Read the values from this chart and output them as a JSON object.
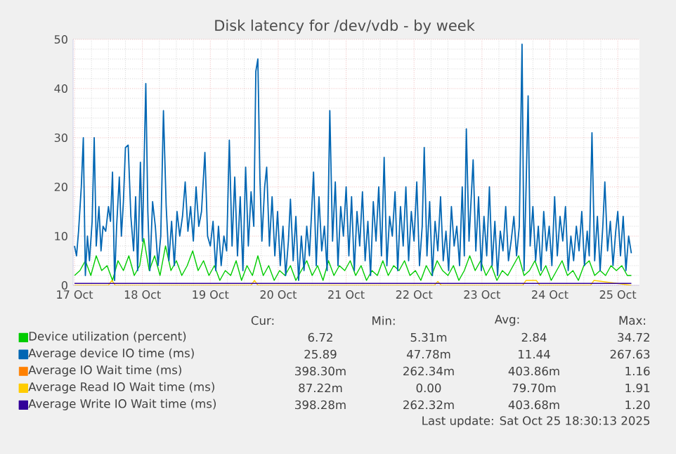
{
  "chart_data": {
    "type": "line",
    "title": "Disk latency for /dev/vdb - by week",
    "xlim": [
      "2025-10-17T11:30",
      "2025-10-25T19:40"
    ],
    "xticks": [
      {
        "value": "2025-10-17T12:00",
        "label": "17 Oct"
      },
      {
        "value": "2025-10-18T12:00",
        "label": "18 Oct"
      },
      {
        "value": "2025-10-19T12:00",
        "label": "19 Oct"
      },
      {
        "value": "2025-10-20T12:00",
        "label": "20 Oct"
      },
      {
        "value": "2025-10-21T12:00",
        "label": "21 Oct"
      },
      {
        "value": "2025-10-22T12:00",
        "label": "22 Oct"
      },
      {
        "value": "2025-10-23T12:00",
        "label": "23 Oct"
      },
      {
        "value": "2025-10-24T12:00",
        "label": "24 Oct"
      },
      {
        "value": "2025-10-25T12:00",
        "label": "25 Oct"
      }
    ],
    "ylim": [
      0,
      50
    ],
    "yticks": [
      0,
      10,
      20,
      30,
      40,
      50
    ],
    "grid": true,
    "legend": "bottom",
    "series": [
      {
        "name": "Device utilization (percent)",
        "color": "#00cc00",
        "x": [
          "2025-10-17T12:00",
          "2025-10-17T13:55",
          "2025-10-17T15:50",
          "2025-10-17T17:46",
          "2025-10-17T19:41",
          "2025-10-17T21:36",
          "2025-10-17T23:31",
          "2025-10-18T01:26",
          "2025-10-18T03:22",
          "2025-10-18T05:17",
          "2025-10-18T07:12",
          "2025-10-18T09:07",
          "2025-10-18T11:02",
          "2025-10-18T12:29",
          "2025-10-18T14:24",
          "2025-10-18T16:19",
          "2025-10-18T18:14",
          "2025-10-18T20:10",
          "2025-10-18T22:05",
          "2025-10-19T00:00",
          "2025-10-19T01:55",
          "2025-10-19T03:50",
          "2025-10-19T05:46",
          "2025-10-19T07:41",
          "2025-10-19T09:36",
          "2025-10-19T11:31",
          "2025-10-19T13:26",
          "2025-10-19T15:22",
          "2025-10-19T17:17",
          "2025-10-19T19:12",
          "2025-10-19T21:07",
          "2025-10-19T23:02",
          "2025-10-20T00:58",
          "2025-10-20T02:53",
          "2025-10-20T04:48",
          "2025-10-20T06:43",
          "2025-10-20T08:38",
          "2025-10-20T10:34",
          "2025-10-20T12:29",
          "2025-10-20T14:24",
          "2025-10-20T16:19",
          "2025-10-20T18:14",
          "2025-10-20T20:10",
          "2025-10-20T22:05",
          "2025-10-21T00:00",
          "2025-10-21T01:55",
          "2025-10-21T03:50",
          "2025-10-21T05:46",
          "2025-10-21T07:41",
          "2025-10-21T09:36",
          "2025-10-21T11:31",
          "2025-10-21T13:26",
          "2025-10-21T15:22",
          "2025-10-21T17:17",
          "2025-10-21T19:12",
          "2025-10-21T21:07",
          "2025-10-21T23:02",
          "2025-10-22T00:58",
          "2025-10-22T02:53",
          "2025-10-22T04:48",
          "2025-10-22T06:43",
          "2025-10-22T08:38",
          "2025-10-22T10:34",
          "2025-10-22T12:29",
          "2025-10-22T14:24",
          "2025-10-22T16:19",
          "2025-10-22T18:14",
          "2025-10-22T20:10",
          "2025-10-22T22:05",
          "2025-10-23T00:00",
          "2025-10-23T01:55",
          "2025-10-23T03:50",
          "2025-10-23T05:46",
          "2025-10-23T07:41",
          "2025-10-23T09:36",
          "2025-10-23T11:31",
          "2025-10-23T13:26",
          "2025-10-23T15:22",
          "2025-10-23T17:17",
          "2025-10-23T19:12",
          "2025-10-23T21:07",
          "2025-10-23T23:02",
          "2025-10-24T00:58",
          "2025-10-24T02:53",
          "2025-10-24T04:48",
          "2025-10-24T06:43",
          "2025-10-24T08:38",
          "2025-10-24T10:34",
          "2025-10-24T12:29",
          "2025-10-24T14:24",
          "2025-10-24T16:19",
          "2025-10-24T18:14",
          "2025-10-24T20:10",
          "2025-10-24T22:05",
          "2025-10-25T00:00",
          "2025-10-25T01:55",
          "2025-10-25T03:50",
          "2025-10-25T05:46",
          "2025-10-25T07:41",
          "2025-10-25T09:36",
          "2025-10-25T11:31",
          "2025-10-25T13:26",
          "2025-10-25T15:22",
          "2025-10-25T16:48"
        ],
        "values": [
          2,
          3,
          5,
          2,
          6,
          3,
          4,
          1,
          5,
          3,
          6,
          2,
          4,
          9.5,
          3,
          6,
          2,
          8,
          3,
          5,
          2,
          4,
          7,
          3,
          5,
          2,
          4,
          1,
          3,
          2,
          5,
          1,
          4,
          2,
          6,
          2,
          4,
          1,
          3,
          2,
          4,
          1,
          3,
          5,
          2,
          4,
          1,
          5,
          2,
          4,
          3,
          5,
          2,
          4,
          1,
          3,
          2,
          5,
          2,
          4,
          3,
          5,
          2,
          3,
          1,
          4,
          2,
          5,
          3,
          2,
          4,
          1,
          3,
          6,
          3,
          5,
          2,
          4,
          1,
          3,
          2,
          4,
          6,
          2,
          3,
          5,
          2,
          4,
          1,
          3,
          5,
          2,
          3,
          1,
          4,
          5,
          2,
          3,
          2,
          4,
          3,
          4,
          2,
          2
        ]
      },
      {
        "name": "Average device IO time (ms)",
        "color": "#0066b3",
        "x": [
          "2025-10-17T12:00",
          "2025-10-17T12:43",
          "2025-10-17T13:26",
          "2025-10-17T14:24",
          "2025-10-17T15:07",
          "2025-10-17T15:50",
          "2025-10-17T16:34",
          "2025-10-17T17:17",
          "2025-10-17T18:14",
          "2025-10-17T18:58",
          "2025-10-17T19:41",
          "2025-10-17T20:38",
          "2025-10-17T21:22",
          "2025-10-17T22:05",
          "2025-10-17T23:02",
          "2025-10-18T00:00",
          "2025-10-18T00:43",
          "2025-10-18T01:26",
          "2025-10-18T02:10",
          "2025-10-18T02:53",
          "2025-10-18T03:50",
          "2025-10-18T04:34",
          "2025-10-18T05:17",
          "2025-10-18T06:00",
          "2025-10-18T06:58",
          "2025-10-18T07:55",
          "2025-10-18T08:53",
          "2025-10-18T09:36",
          "2025-10-18T10:19",
          "2025-10-18T11:17",
          "2025-10-18T12:00",
          "2025-10-18T13:12",
          "2025-10-18T13:55",
          "2025-10-18T14:38",
          "2025-10-18T15:36",
          "2025-10-18T16:34",
          "2025-10-18T17:31",
          "2025-10-18T18:29",
          "2025-10-18T19:26",
          "2025-10-18T20:24",
          "2025-10-18T21:22",
          "2025-10-18T22:19",
          "2025-10-18T23:17",
          "2025-10-19T00:14",
          "2025-10-19T01:12",
          "2025-10-19T02:10",
          "2025-10-19T03:07",
          "2025-10-19T04:05",
          "2025-10-19T05:02",
          "2025-10-19T06:00",
          "2025-10-19T06:58",
          "2025-10-19T07:55",
          "2025-10-19T08:53",
          "2025-10-19T10:05",
          "2025-10-19T11:02",
          "2025-10-19T12:00",
          "2025-10-19T12:58",
          "2025-10-19T13:55",
          "2025-10-19T14:53",
          "2025-10-19T15:50",
          "2025-10-19T16:48",
          "2025-10-19T17:46",
          "2025-10-19T18:43",
          "2025-10-19T19:41",
          "2025-10-19T20:38",
          "2025-10-19T21:36",
          "2025-10-19T22:34",
          "2025-10-19T23:31",
          "2025-10-20T00:29",
          "2025-10-20T01:26",
          "2025-10-20T02:24",
          "2025-10-20T03:22",
          "2025-10-20T04:05",
          "2025-10-20T04:48",
          "2025-10-20T05:31",
          "2025-10-20T06:14",
          "2025-10-20T07:12",
          "2025-10-20T07:55",
          "2025-10-20T08:53",
          "2025-10-20T09:50",
          "2025-10-20T10:48",
          "2025-10-20T11:46",
          "2025-10-20T12:43",
          "2025-10-20T13:41",
          "2025-10-20T14:38",
          "2025-10-20T15:36",
          "2025-10-20T16:19",
          "2025-10-20T17:17",
          "2025-10-20T18:14",
          "2025-10-20T19:12",
          "2025-10-20T20:10",
          "2025-10-20T21:07",
          "2025-10-20T22:05",
          "2025-10-20T23:02",
          "2025-10-21T00:29",
          "2025-10-21T01:26",
          "2025-10-21T02:24",
          "2025-10-21T03:22",
          "2025-10-21T04:19",
          "2025-10-21T05:17",
          "2025-10-21T06:14",
          "2025-10-21T07:12",
          "2025-10-21T08:10",
          "2025-10-21T09:07",
          "2025-10-21T10:05",
          "2025-10-21T11:02",
          "2025-10-21T12:00",
          "2025-10-21T12:58",
          "2025-10-21T13:55",
          "2025-10-21T14:53",
          "2025-10-21T15:50",
          "2025-10-21T16:48",
          "2025-10-21T17:46",
          "2025-10-21T18:43",
          "2025-10-21T19:41",
          "2025-10-21T20:38",
          "2025-10-21T21:36",
          "2025-10-21T22:34",
          "2025-10-21T23:31",
          "2025-10-22T00:29",
          "2025-10-22T01:26",
          "2025-10-22T02:24",
          "2025-10-22T03:22",
          "2025-10-22T04:19",
          "2025-10-22T05:17",
          "2025-10-22T06:14",
          "2025-10-22T07:12",
          "2025-10-22T08:10",
          "2025-10-22T09:07",
          "2025-10-22T10:05",
          "2025-10-22T11:02",
          "2025-10-22T12:00",
          "2025-10-22T12:58",
          "2025-10-22T13:55",
          "2025-10-22T14:53",
          "2025-10-22T15:36",
          "2025-10-22T16:34",
          "2025-10-22T17:31",
          "2025-10-22T18:29",
          "2025-10-22T19:26",
          "2025-10-22T20:24",
          "2025-10-22T21:22",
          "2025-10-22T22:19",
          "2025-10-22T23:17",
          "2025-10-23T00:14",
          "2025-10-23T01:12",
          "2025-10-23T02:10",
          "2025-10-23T03:07",
          "2025-10-23T04:05",
          "2025-10-23T05:02",
          "2025-10-23T05:46",
          "2025-10-23T06:29",
          "2025-10-23T07:26",
          "2025-10-23T08:53",
          "2025-10-23T09:50",
          "2025-10-23T10:48",
          "2025-10-23T11:46",
          "2025-10-23T12:43",
          "2025-10-23T13:41",
          "2025-10-23T14:38",
          "2025-10-23T15:36",
          "2025-10-23T16:34",
          "2025-10-23T17:31",
          "2025-10-23T18:29",
          "2025-10-23T19:26",
          "2025-10-23T20:24",
          "2025-10-23T21:22",
          "2025-10-23T22:19",
          "2025-10-23T23:17",
          "2025-10-24T00:14",
          "2025-10-24T01:12",
          "2025-10-24T02:10",
          "2025-10-24T02:53",
          "2025-10-24T03:36",
          "2025-10-24T04:19",
          "2025-10-24T05:02",
          "2025-10-24T06:00",
          "2025-10-24T06:58",
          "2025-10-24T07:55",
          "2025-10-24T08:53",
          "2025-10-24T09:50",
          "2025-10-24T10:48",
          "2025-10-24T11:46",
          "2025-10-24T12:43",
          "2025-10-24T13:41",
          "2025-10-24T14:38",
          "2025-10-24T15:36",
          "2025-10-24T16:34",
          "2025-10-24T17:31",
          "2025-10-24T18:29",
          "2025-10-24T19:26",
          "2025-10-24T20:24",
          "2025-10-24T21:22",
          "2025-10-24T22:19",
          "2025-10-24T23:17",
          "2025-10-25T00:14",
          "2025-10-25T01:12",
          "2025-10-25T01:55",
          "2025-10-25T02:53",
          "2025-10-25T03:50",
          "2025-10-25T04:48",
          "2025-10-25T05:46",
          "2025-10-25T06:43",
          "2025-10-25T07:26",
          "2025-10-25T08:24",
          "2025-10-25T09:22",
          "2025-10-25T10:19",
          "2025-10-25T11:17",
          "2025-10-25T12:00",
          "2025-10-25T12:58",
          "2025-10-25T13:55",
          "2025-10-25T14:53",
          "2025-10-25T15:50",
          "2025-10-25T16:48"
        ],
        "values": [
          8,
          6,
          11,
          20,
          30,
          2,
          10,
          5,
          13,
          30,
          8,
          16,
          7,
          12,
          11,
          16,
          13,
          23,
          1,
          12,
          22,
          10,
          17,
          28,
          28.5,
          14,
          7,
          18,
          3,
          25,
          9,
          41,
          15,
          3,
          17,
          12,
          4,
          10,
          35.5,
          16,
          5,
          13,
          4,
          15,
          10,
          14,
          21,
          11,
          16,
          9,
          20,
          12,
          15,
          27,
          10,
          8,
          13,
          3,
          12,
          4,
          10,
          7,
          29.5,
          8,
          22,
          6,
          18,
          3,
          24,
          8,
          19,
          12,
          43.5,
          46,
          22,
          9,
          20,
          24,
          8,
          18,
          6,
          15,
          4,
          12,
          2,
          9,
          17.5,
          5,
          14,
          1,
          10,
          3,
          12,
          6,
          23,
          4,
          18,
          7,
          12,
          3,
          35.5,
          9,
          21,
          4,
          16,
          10,
          20,
          6,
          18,
          3,
          15,
          8,
          19,
          5,
          13,
          2,
          17,
          9,
          20,
          6,
          26,
          4,
          14,
          10,
          19,
          3,
          16,
          8,
          20,
          5,
          15,
          9,
          21,
          4,
          12,
          28,
          6,
          17,
          2,
          13,
          7,
          18,
          5,
          11,
          3,
          16,
          8,
          12,
          4,
          20,
          6,
          31.8,
          9,
          25.5,
          7,
          18,
          3,
          14,
          6,
          20,
          4,
          13,
          2,
          11,
          7,
          16,
          5,
          9,
          14,
          6,
          12,
          49,
          3,
          20,
          38.5,
          8,
          16,
          5,
          12,
          3,
          15,
          7,
          12,
          4,
          18,
          6,
          14,
          9,
          16,
          3,
          10,
          5,
          12,
          7,
          15,
          4,
          11,
          6,
          31,
          5,
          14,
          3,
          12,
          21,
          7,
          13,
          4,
          11,
          15,
          6,
          14,
          3,
          10,
          6.5
        ]
      },
      {
        "name": "Average IO Wait time (ms)",
        "color": "#ff8000",
        "values": [
          null,
          null,
          null,
          null,
          null,
          null,
          null,
          null,
          null,
          null
        ]
      },
      {
        "name": "Average Read IO Wait time (ms)",
        "color": "#ffcc00",
        "x": [
          "2025-10-17T12:00",
          "2025-10-18T00:00",
          "2025-10-18T01:12",
          "2025-10-18T02:24",
          "2025-10-19T00:00",
          "2025-10-20T02:24",
          "2025-10-20T03:36",
          "2025-10-20T04:48",
          "2025-10-21T12:00",
          "2025-10-22T19:12",
          "2025-10-22T20:24",
          "2025-10-22T21:36",
          "2025-10-24T02:24",
          "2025-10-24T03:36",
          "2025-10-24T07:12",
          "2025-10-24T08:24",
          "2025-10-25T00:00",
          "2025-10-25T02:24",
          "2025-10-25T03:36",
          "2025-10-25T16:48"
        ],
        "values": [
          0,
          0,
          1,
          0,
          0,
          0,
          1,
          0,
          0,
          0,
          0.8,
          0,
          0,
          1,
          1,
          0,
          0,
          0,
          1,
          0
        ]
      },
      {
        "name": "Average Write IO Wait time (ms)",
        "color": "#330099",
        "x": [
          "2025-10-17T12:00",
          "2025-10-18T12:00",
          "2025-10-19T12:00",
          "2025-10-20T12:00",
          "2025-10-21T12:00",
          "2025-10-22T12:00",
          "2025-10-23T12:00",
          "2025-10-24T12:00",
          "2025-10-25T12:00",
          "2025-10-25T16:48"
        ],
        "values": [
          0.4,
          0.4,
          0.4,
          0.4,
          0.4,
          0.4,
          0.4,
          0.4,
          0.4,
          0.4
        ]
      }
    ],
    "annotations": [
      "Cur:",
      "Min:",
      "Avg:",
      "Max:",
      "6.72",
      "5.31m",
      "2.84",
      "34.72",
      "25.89",
      "47.78m",
      "11.44",
      "267.63",
      "398.30m",
      "262.34m",
      "403.86m",
      "1.16",
      "87.22m",
      "0.00",
      "79.70m",
      "1.91",
      "398.28m",
      "262.32m",
      "403.68m",
      "1.20",
      "Last update: Sat Oct 25 18:30:13 2025"
    ]
  }
}
